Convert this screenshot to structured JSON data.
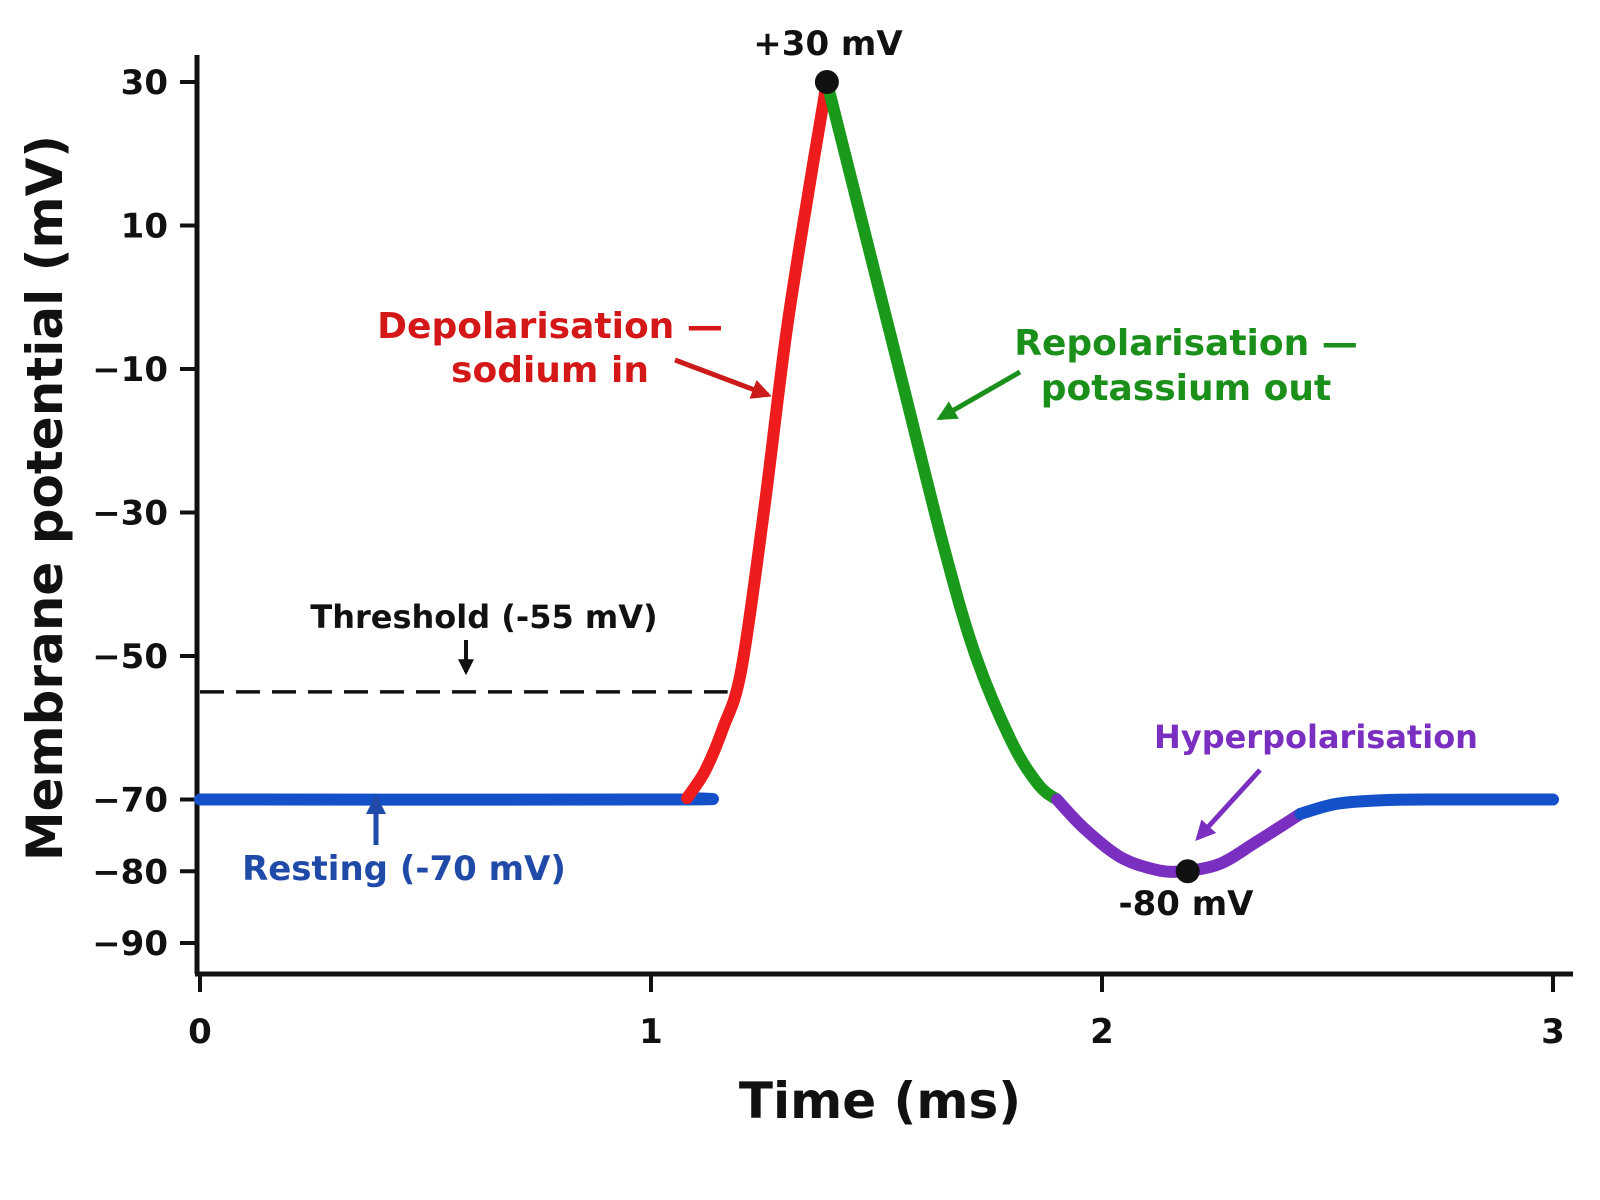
{
  "chart_data": {
    "type": "line",
    "title": "",
    "xlabel": "Time (ms)",
    "ylabel": "Membrane potential (mV)",
    "xlim": [
      0,
      3
    ],
    "ylim": [
      -90,
      30
    ],
    "x_ticks": [
      0,
      1,
      2,
      3
    ],
    "x_tick_labels": [
      "0",
      "1",
      "2",
      "3"
    ],
    "y_ticks": [
      30,
      10,
      -10,
      -30,
      -50,
      -70,
      -80,
      -90
    ],
    "y_tick_labels": [
      "30",
      "10",
      "−10",
      "−30",
      "−50",
      "−70",
      "−80",
      "−90"
    ],
    "grid": false,
    "threshold": {
      "value": -55,
      "label": "Threshold (-55 mV)"
    },
    "series": [
      {
        "phase": "resting",
        "color": "#1450c8",
        "x": [
          0,
          1.05,
          1.08
        ],
        "y": [
          -70,
          -70,
          -69.8
        ]
      },
      {
        "phase": "depolarisation",
        "color": "#ee1c1c",
        "x": [
          1.08,
          1.12,
          1.16,
          1.2,
          1.25,
          1.3,
          1.35,
          1.39
        ],
        "y": [
          -69.8,
          -66,
          -60,
          -52,
          -30,
          -5,
          15,
          30
        ]
      },
      {
        "phase": "repolarisation",
        "color": "#1a9a1a",
        "x": [
          1.39,
          1.45,
          1.55,
          1.65,
          1.72,
          1.8,
          1.86,
          1.9
        ],
        "y": [
          30,
          15,
          -10,
          -35,
          -50,
          -62,
          -68,
          -70
        ]
      },
      {
        "phase": "hyperpolarisation",
        "color": "#7b2fc0",
        "x": [
          1.9,
          1.96,
          2.04,
          2.12,
          2.18,
          2.26,
          2.34,
          2.44
        ],
        "y": [
          -70,
          -74,
          -78,
          -79.8,
          -80,
          -79,
          -76,
          -72
        ]
      },
      {
        "phase": "recovery",
        "color": "#1450c8",
        "x": [
          2.44,
          2.52,
          2.62,
          2.75,
          3.0
        ],
        "y": [
          -72,
          -70.6,
          -70.1,
          -70,
          -70
        ]
      }
    ],
    "peak": {
      "x": 1.39,
      "y": 30,
      "label": "+30 mV"
    },
    "trough": {
      "x": 2.19,
      "y": -80,
      "label": "-80 mV"
    },
    "annotations": {
      "depolarisation": {
        "line1": "Depolarisation —",
        "line2": "sodium in",
        "color": "#d41818"
      },
      "repolarisation": {
        "line1": "Repolarisation —",
        "line2": "potassium out",
        "color": "#1a8f1a"
      },
      "hyperpolarisation": {
        "label": "Hyperpolarisation",
        "color": "#7b2fc0"
      },
      "resting": {
        "label": "Resting (-70 mV)",
        "color": "#1f4aa8"
      }
    }
  }
}
